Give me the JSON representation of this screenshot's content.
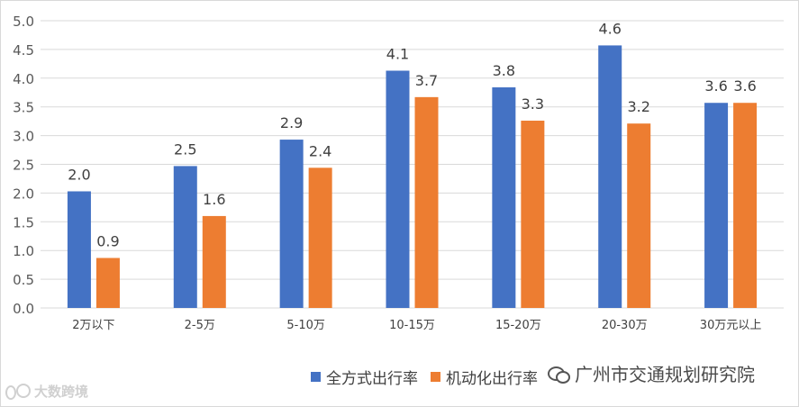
{
  "chart_data": {
    "type": "bar",
    "categories": [
      "2万以下",
      "2-5万",
      "5-10万",
      "10-15万",
      "15-20万",
      "20-30万",
      "30万元以上"
    ],
    "series": [
      {
        "name": "全方式出行率",
        "values": [
          2.0,
          2.5,
          2.9,
          4.1,
          3.8,
          4.6,
          3.6
        ],
        "data_labels": [
          "2.0",
          "2.5",
          "2.9",
          "4.1",
          "3.8",
          "4.6",
          "3.6"
        ],
        "color": "#4472c4"
      },
      {
        "name": "机动化出行率",
        "values": [
          0.9,
          1.6,
          2.4,
          3.7,
          3.3,
          3.2,
          3.6
        ],
        "data_labels": [
          "0.9",
          "1.6",
          "2.4",
          "3.7",
          "3.3",
          "3.2",
          "3.6"
        ],
        "color": "#ed7d31"
      }
    ],
    "bar_heights": [
      [
        2.03,
        2.47,
        2.93,
        4.13,
        3.84,
        4.57,
        3.57
      ],
      [
        0.87,
        1.6,
        2.44,
        3.67,
        3.26,
        3.21,
        3.57
      ]
    ],
    "ylim": [
      0,
      5.0
    ],
    "yticks": [
      "0.0",
      "0.5",
      "1.0",
      "1.5",
      "2.0",
      "2.5",
      "3.0",
      "3.5",
      "4.0",
      "4.5",
      "5.0"
    ],
    "grid": true,
    "legend_position": "bottom-right",
    "xlabel": "",
    "ylabel": "",
    "title": ""
  },
  "watermark": {
    "text": "广州市交通规划研究院",
    "icon": "wechat-icon"
  },
  "logo": {
    "text": "大数跨境"
  }
}
